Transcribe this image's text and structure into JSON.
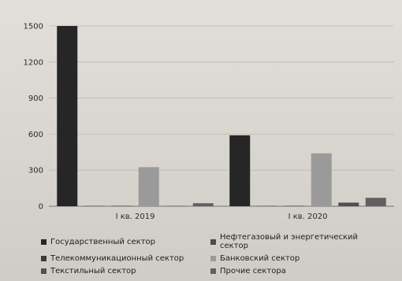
{
  "chart_data": {
    "type": "bar",
    "title": "",
    "xlabel": "",
    "ylabel": "",
    "ylim": [
      0,
      1500
    ],
    "yticks": [
      0,
      300,
      600,
      900,
      1200,
      1500
    ],
    "categories": [
      "I кв. 2019",
      "I кв. 2020"
    ],
    "grid": true,
    "legend_position": "bottom",
    "series": [
      {
        "name": "Государственный сектор",
        "color": "#262626",
        "values": [
          1500,
          590
        ]
      },
      {
        "name": "Нефтегазовый и энергетический сектор",
        "color": "#4a4a4a",
        "values": [
          2,
          2
        ]
      },
      {
        "name": "Телекоммуникационный сектор",
        "color": "#3a3a3a",
        "values": [
          2,
          2
        ]
      },
      {
        "name": "Банковский сектор",
        "color": "#9a9a9a",
        "values": [
          325,
          440
        ]
      },
      {
        "name": "Текстильный сектор",
        "color": "#505050",
        "values": [
          2,
          30
        ]
      },
      {
        "name": "Прочие сектора",
        "color": "#606060",
        "values": [
          25,
          70
        ]
      }
    ]
  }
}
